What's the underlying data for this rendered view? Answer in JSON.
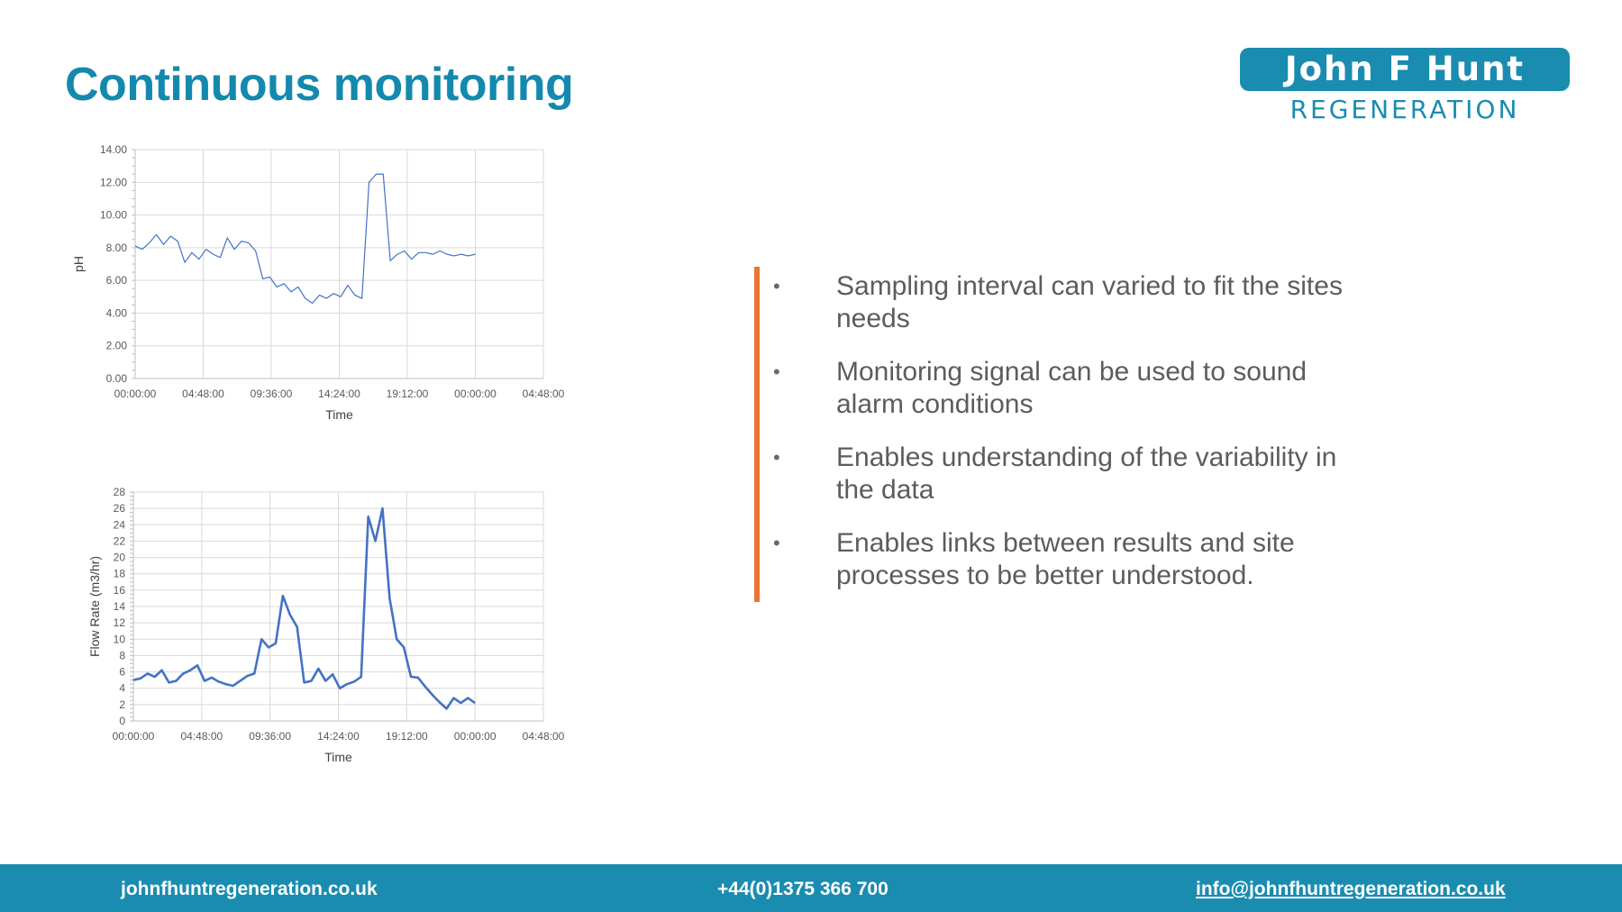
{
  "slide": {
    "title": "Continuous monitoring"
  },
  "logo": {
    "line1": "John F Hunt",
    "line2": "REGENERATION"
  },
  "bullets": [
    "Sampling interval can varied to fit the sites needs",
    "Monitoring signal can be used to sound alarm conditions",
    "Enables understanding of the variability in the data",
    "Enables links between results and site processes to be better understood."
  ],
  "footer": {
    "website": "johnfhuntregeneration.co.uk",
    "phone": "+44(0)1375 366 700",
    "email": "info@johnfhuntregeneration.co.uk"
  },
  "colors": {
    "brand": "#1a8cb0",
    "accent": "#ec7430",
    "series": "#4472c4"
  },
  "chart_data": [
    {
      "type": "line",
      "xlabel": "Time",
      "ylabel": "pH",
      "ylim": [
        0,
        14
      ],
      "yticks": [
        "0.00",
        "2.00",
        "4.00",
        "6.00",
        "8.00",
        "10.00",
        "12.00",
        "14.00"
      ],
      "xticks": [
        "00:00:00",
        "04:48:00",
        "09:36:00",
        "14:24:00",
        "19:12:00",
        "00:00:00",
        "04:48:00"
      ],
      "grid": true,
      "series": [
        {
          "x": [
            "00:00",
            "00:30",
            "01:00",
            "01:30",
            "02:00",
            "02:30",
            "03:00",
            "03:30",
            "04:00",
            "04:30",
            "05:00",
            "05:30",
            "06:00",
            "06:30",
            "07:00",
            "07:30",
            "08:00",
            "08:30",
            "09:00",
            "09:30",
            "10:00",
            "10:30",
            "11:00",
            "11:30",
            "12:00",
            "12:30",
            "13:00",
            "13:30",
            "14:00",
            "14:30",
            "15:00",
            "15:30",
            "16:00",
            "16:30",
            "17:00",
            "17:30",
            "18:00",
            "18:30",
            "19:00",
            "19:30",
            "20:00",
            "20:30",
            "21:00",
            "21:30",
            "22:00",
            "22:30",
            "23:00",
            "23:30",
            "00:00"
          ],
          "values": [
            8.1,
            7.9,
            8.3,
            8.8,
            8.2,
            8.7,
            8.4,
            7.1,
            7.7,
            7.3,
            7.9,
            7.6,
            7.4,
            8.6,
            7.9,
            8.4,
            8.3,
            7.8,
            6.1,
            6.2,
            5.6,
            5.8,
            5.3,
            5.6,
            4.9,
            4.6,
            5.1,
            4.9,
            5.2,
            5.0,
            5.7,
            5.1,
            4.9,
            12.0,
            12.5,
            12.5,
            7.2,
            7.6,
            7.8,
            7.3,
            7.7,
            7.7,
            7.6,
            7.8,
            7.6,
            7.5,
            7.6,
            7.5,
            7.6
          ]
        }
      ]
    },
    {
      "type": "line",
      "xlabel": "Time",
      "ylabel": "Flow Rate (m3/hr)",
      "ylim": [
        0,
        28
      ],
      "yticks": [
        "0",
        "2",
        "4",
        "6",
        "8",
        "10",
        "12",
        "14",
        "16",
        "18",
        "20",
        "22",
        "24",
        "26",
        "28"
      ],
      "xticks": [
        "00:00:00",
        "04:48:00",
        "09:36:00",
        "14:24:00",
        "19:12:00",
        "00:00:00",
        "04:48:00"
      ],
      "grid": true,
      "series": [
        {
          "x": [
            "00:00",
            "00:30",
            "01:00",
            "01:30",
            "02:00",
            "02:30",
            "03:00",
            "03:30",
            "04:00",
            "04:30",
            "05:00",
            "05:30",
            "06:00",
            "06:30",
            "07:00",
            "07:30",
            "08:00",
            "08:30",
            "09:00",
            "09:30",
            "10:00",
            "10:30",
            "11:00",
            "11:30",
            "12:00",
            "12:30",
            "13:00",
            "13:30",
            "14:00",
            "14:30",
            "15:00",
            "15:30",
            "16:00",
            "16:30",
            "17:00",
            "17:30",
            "18:00",
            "18:30",
            "19:00",
            "19:30",
            "20:00",
            "20:30",
            "21:00",
            "21:30",
            "22:00",
            "22:30",
            "23:00",
            "23:30",
            "00:00"
          ],
          "values": [
            5.0,
            5.2,
            5.8,
            5.4,
            6.2,
            4.7,
            4.9,
            5.8,
            6.2,
            6.8,
            4.9,
            5.3,
            4.8,
            4.5,
            4.3,
            4.9,
            5.5,
            5.8,
            10.0,
            9.0,
            9.5,
            15.3,
            13.0,
            11.5,
            4.7,
            4.9,
            6.4,
            4.9,
            5.7,
            4.0,
            4.5,
            4.8,
            5.4,
            25.0,
            22.0,
            26.0,
            15.0,
            10.0,
            9.0,
            5.4,
            5.3,
            4.2,
            3.2,
            2.3,
            1.5,
            2.8,
            2.2,
            2.8,
            2.2
          ]
        }
      ]
    }
  ]
}
